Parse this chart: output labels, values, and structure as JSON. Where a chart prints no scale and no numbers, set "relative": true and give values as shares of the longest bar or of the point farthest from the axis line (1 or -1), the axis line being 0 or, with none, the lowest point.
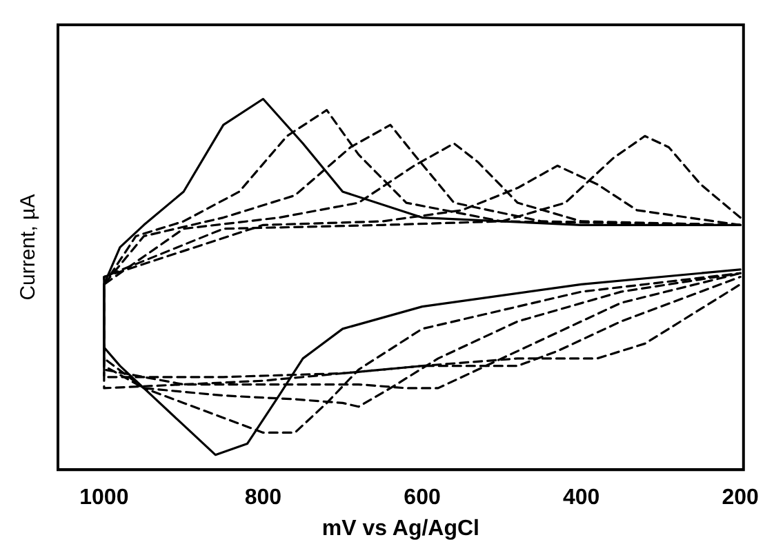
{
  "chart_data": {
    "type": "line",
    "relative": true,
    "xlabel": "mV vs Ag/AgCl",
    "ylabel": "Current, µA",
    "xlim": [
      1058,
      196
    ],
    "xticks": [
      1000,
      800,
      600,
      400,
      200
    ],
    "grid": false,
    "legend": false,
    "marker": "none",
    "series": [
      {
        "color": "#000000",
        "line_style": "solid",
        "x": [
          200,
          400,
          600,
          700,
          750,
          800,
          850,
          900,
          950,
          980,
          1000,
          1000,
          980,
          950,
          900,
          860,
          820,
          780,
          750,
          700,
          600,
          400,
          200
        ],
        "values": [
          0.66,
          0.66,
          0.68,
          0.75,
          0.88,
          1.0,
          0.93,
          0.75,
          0.66,
          0.6,
          0.5,
          0.33,
          0.28,
          0.22,
          0.12,
          0.04,
          0.07,
          0.2,
          0.3,
          0.38,
          0.44,
          0.5,
          0.54
        ]
      },
      {
        "color": "#000000",
        "line_style": "dashed",
        "x": [
          200,
          500,
          620,
          680,
          720,
          770,
          830,
          900,
          960,
          1000,
          1000,
          950,
          900,
          850,
          800,
          760,
          720,
          680,
          600,
          400,
          200
        ],
        "values": [
          0.66,
          0.67,
          0.72,
          0.85,
          0.97,
          0.9,
          0.75,
          0.67,
          0.63,
          0.5,
          0.3,
          0.22,
          0.18,
          0.14,
          0.1,
          0.1,
          0.18,
          0.27,
          0.38,
          0.48,
          0.53
        ]
      },
      {
        "color": "#000000",
        "line_style": "dashed",
        "x": [
          200,
          450,
          560,
          610,
          640,
          690,
          760,
          850,
          950,
          1000,
          1000,
          950,
          850,
          760,
          700,
          680,
          640,
          580,
          480,
          350,
          200
        ],
        "values": [
          0.66,
          0.67,
          0.72,
          0.85,
          0.93,
          0.87,
          0.74,
          0.68,
          0.63,
          0.5,
          0.28,
          0.22,
          0.2,
          0.19,
          0.18,
          0.17,
          0.22,
          0.3,
          0.4,
          0.48,
          0.53
        ]
      },
      {
        "color": "#000000",
        "line_style": "dashed",
        "x": [
          200,
          400,
          480,
          530,
          560,
          610,
          680,
          780,
          900,
          1000,
          1000,
          900,
          780,
          680,
          620,
          580,
          530,
          450,
          350,
          200
        ],
        "values": [
          0.66,
          0.67,
          0.72,
          0.83,
          0.88,
          0.82,
          0.72,
          0.68,
          0.65,
          0.5,
          0.27,
          0.23,
          0.23,
          0.23,
          0.22,
          0.22,
          0.27,
          0.35,
          0.45,
          0.53
        ]
      },
      {
        "color": "#000000",
        "line_style": "dashed",
        "x": [
          200,
          330,
          380,
          430,
          480,
          550,
          650,
          800,
          1000,
          1000,
          850,
          700,
          600,
          530,
          480,
          430,
          350,
          200
        ],
        "values": [
          0.66,
          0.7,
          0.77,
          0.82,
          0.76,
          0.7,
          0.67,
          0.66,
          0.52,
          0.25,
          0.25,
          0.26,
          0.28,
          0.28,
          0.28,
          0.32,
          0.4,
          0.52
        ]
      },
      {
        "color": "#000000",
        "line_style": "dashed",
        "x": [
          200,
          250,
          290,
          320,
          360,
          420,
          500,
          650,
          850,
          1000,
          1000,
          800,
          600,
          480,
          420,
          380,
          320,
          260,
          200
        ],
        "values": [
          0.68,
          0.77,
          0.87,
          0.9,
          0.84,
          0.72,
          0.67,
          0.66,
          0.65,
          0.52,
          0.22,
          0.24,
          0.28,
          0.3,
          0.3,
          0.3,
          0.34,
          0.42,
          0.5
        ]
      }
    ]
  }
}
